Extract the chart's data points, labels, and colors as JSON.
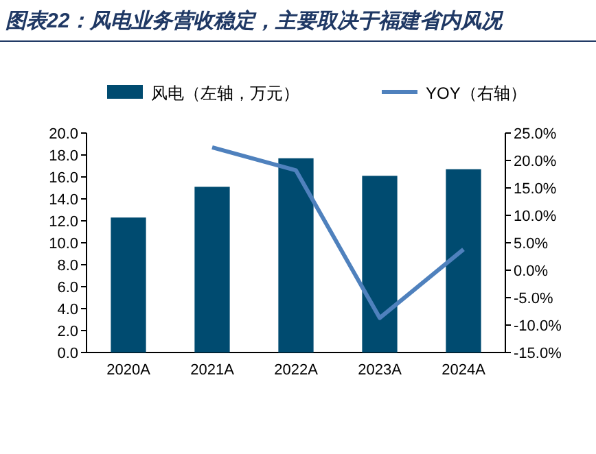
{
  "chart_data": {
    "type": "bar",
    "title": "图表22：风电业务营收稳定，主要取决于福建省内风况",
    "categories": [
      "2020A",
      "2021A",
      "2022A",
      "2023A",
      "2024A"
    ],
    "series": [
      {
        "name": "风电（左轴，万元）",
        "color": "#004b70",
        "values": [
          12.3,
          15.1,
          17.7,
          16.1,
          16.7
        ]
      },
      {
        "name": "YOY（右轴）",
        "type": "line",
        "axis": "y2",
        "color": "#4f81bd",
        "values": [
          null,
          22.4,
          18.2,
          -8.7,
          3.8
        ]
      }
    ],
    "ylim": [
      0,
      20
    ],
    "yticks": [
      {
        "value": 0,
        "label": "0.0"
      },
      {
        "value": 2,
        "label": "2.0"
      },
      {
        "value": 4,
        "label": "4.0"
      },
      {
        "value": 6,
        "label": "6.0"
      },
      {
        "value": 8,
        "label": "8.0"
      },
      {
        "value": 10,
        "label": "10.0"
      },
      {
        "value": 12,
        "label": "12.0"
      },
      {
        "value": 14,
        "label": "14.0"
      },
      {
        "value": 16,
        "label": "16.0"
      },
      {
        "value": 18,
        "label": "18.0"
      },
      {
        "value": 20,
        "label": "20.0"
      }
    ],
    "y2lim": [
      -15,
      25
    ],
    "y2ticks": [
      {
        "value": -15,
        "label": "-15.0%"
      },
      {
        "value": -10,
        "label": "-10.0%"
      },
      {
        "value": -5,
        "label": "-5.0%"
      },
      {
        "value": 0,
        "label": "0.0%"
      },
      {
        "value": 5,
        "label": "5.0%"
      },
      {
        "value": 10,
        "label": "10.0%"
      },
      {
        "value": 15,
        "label": "15.0%"
      },
      {
        "value": 20,
        "label": "20.0%"
      },
      {
        "value": 25,
        "label": "25.0%"
      }
    ],
    "legend": "top",
    "grid": false
  }
}
